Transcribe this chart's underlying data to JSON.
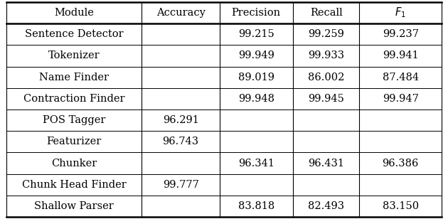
{
  "headers": [
    "Module",
    "Accuracy",
    "Precision",
    "Recall",
    "F_1"
  ],
  "rows": [
    [
      "Sentence Detector",
      "",
      "99.215",
      "99.259",
      "99.237"
    ],
    [
      "Tokenizer",
      "",
      "99.949",
      "99.933",
      "99.941"
    ],
    [
      "Name Finder",
      "",
      "89.019",
      "86.002",
      "87.484"
    ],
    [
      "Contraction Finder",
      "",
      "99.948",
      "99.945",
      "99.947"
    ],
    [
      "POS Tagger",
      "96.291",
      "",
      "",
      ""
    ],
    [
      "Featurizer",
      "96.743",
      "",
      "",
      ""
    ],
    [
      "Chunker",
      "",
      "96.341",
      "96.431",
      "96.386"
    ],
    [
      "Chunk Head Finder",
      "99.777",
      "",
      "",
      ""
    ],
    [
      "Shallow Parser",
      "",
      "83.818",
      "82.493",
      "83.150"
    ]
  ],
  "col_starts": [
    0.01,
    0.315,
    0.49,
    0.655,
    0.805
  ],
  "col_ends": [
    0.315,
    0.49,
    0.655,
    0.805,
    0.99
  ],
  "figsize": [
    6.3,
    3.08
  ],
  "dpi": 100,
  "font_size": 10.5
}
